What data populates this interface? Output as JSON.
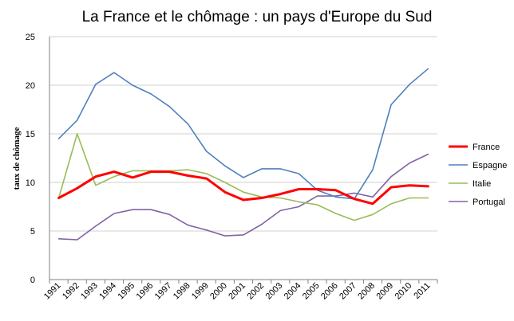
{
  "chart_data": {
    "type": "line",
    "title": "La France et le chômage : un pays d'Europe du Sud",
    "xlabel": "",
    "ylabel": "taux de chômage",
    "ylim": [
      0,
      25
    ],
    "yticks": [
      "0",
      "5",
      "10",
      "15",
      "20",
      "25"
    ],
    "grid": true,
    "legend": "right",
    "categories": [
      "1991",
      "1992",
      "1993",
      "1994",
      "1995",
      "1996",
      "1997",
      "1998",
      "1999",
      "2000",
      "2001",
      "2002",
      "2003",
      "2004",
      "2005",
      "2006",
      "2007",
      "2008",
      "2009",
      "2010",
      "2011"
    ],
    "series": [
      {
        "name": "France",
        "color": "#ff0000",
        "width": 3,
        "values": [
          8.4,
          9.4,
          10.6,
          11.1,
          10.5,
          11.1,
          11.1,
          10.7,
          10.4,
          9.0,
          8.2,
          8.4,
          8.8,
          9.3,
          9.3,
          9.2,
          8.3,
          7.8,
          9.5,
          9.7,
          9.6
        ]
      },
      {
        "name": "Espagne",
        "color": "#4f81bd",
        "width": 1.6,
        "values": [
          14.5,
          16.4,
          20.1,
          21.3,
          20.0,
          19.1,
          17.8,
          16.0,
          13.2,
          11.7,
          10.5,
          11.4,
          11.4,
          10.9,
          9.2,
          8.5,
          8.3,
          11.3,
          18.0,
          20.1,
          21.7
        ]
      },
      {
        "name": "Italie",
        "color": "#9bbb59",
        "width": 1.6,
        "values": [
          8.4,
          15.0,
          9.7,
          10.6,
          11.2,
          11.2,
          11.2,
          11.3,
          10.9,
          10.0,
          9.0,
          8.5,
          8.4,
          8.0,
          7.7,
          6.8,
          6.1,
          6.7,
          7.8,
          8.4,
          8.4
        ]
      },
      {
        "name": "Portugal",
        "color": "#8064a2",
        "width": 1.6,
        "values": [
          4.2,
          4.1,
          5.5,
          6.8,
          7.2,
          7.2,
          6.7,
          5.6,
          5.1,
          4.5,
          4.6,
          5.7,
          7.1,
          7.5,
          8.6,
          8.6,
          8.9,
          8.5,
          10.6,
          12.0,
          12.9
        ]
      }
    ]
  }
}
